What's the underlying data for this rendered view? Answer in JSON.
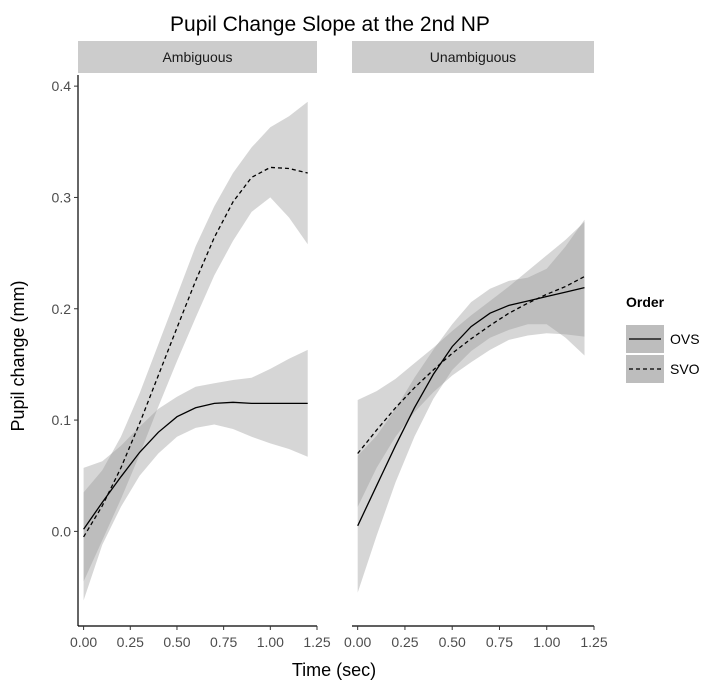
{
  "chart_data": {
    "type": "line",
    "title": "Pupil Change Slope at the 2nd NP",
    "xlabel": "Time (sec)",
    "ylabel": "Pupil change (mm)",
    "xlim": [
      -0.03,
      1.25
    ],
    "ylim": [
      -0.085,
      0.41
    ],
    "x_ticks": [
      "0.00",
      "0.25",
      "0.50",
      "0.75",
      "1.00",
      "1.25"
    ],
    "y_ticks": [
      "0.0",
      "0.1",
      "0.2",
      "0.3",
      "0.4"
    ],
    "grid": false,
    "legend": {
      "title": "Order",
      "position": "right",
      "items": [
        {
          "label": "OVS",
          "linetype": "solid"
        },
        {
          "label": "SVO",
          "linetype": "dashed"
        }
      ]
    },
    "colors": {
      "line": "#000000",
      "ribbon": "#999999",
      "strip": "#cccccc",
      "legend_key": "#bdbdbd"
    },
    "panels": [
      {
        "strip": "Ambiguous",
        "series": [
          {
            "name": "OVS",
            "x": [
              0.0,
              0.1,
              0.2,
              0.3,
              0.4,
              0.5,
              0.6,
              0.7,
              0.8,
              0.9,
              1.0,
              1.1,
              1.2
            ],
            "y": [
              0.002,
              0.026,
              0.049,
              0.071,
              0.089,
              0.103,
              0.111,
              0.115,
              0.116,
              0.115,
              0.115,
              0.115,
              0.115
            ],
            "lower": [
              -0.062,
              -0.012,
              0.022,
              0.05,
              0.07,
              0.085,
              0.093,
              0.096,
              0.092,
              0.085,
              0.079,
              0.074,
              0.067
            ],
            "upper": [
              0.057,
              0.063,
              0.077,
              0.094,
              0.11,
              0.121,
              0.13,
              0.133,
              0.136,
              0.138,
              0.146,
              0.155,
              0.163
            ]
          },
          {
            "name": "SVO",
            "x": [
              0.0,
              0.1,
              0.2,
              0.3,
              0.4,
              0.5,
              0.6,
              0.7,
              0.8,
              0.9,
              1.0,
              1.1,
              1.2
            ],
            "y": [
              -0.005,
              0.023,
              0.057,
              0.097,
              0.14,
              0.183,
              0.225,
              0.264,
              0.296,
              0.318,
              0.327,
              0.326,
              0.322
            ],
            "lower": [
              -0.045,
              -0.008,
              0.029,
              0.069,
              0.112,
              0.153,
              0.192,
              0.23,
              0.261,
              0.287,
              0.3,
              0.282,
              0.258
            ],
            "upper": [
              0.035,
              0.055,
              0.085,
              0.124,
              0.168,
              0.212,
              0.256,
              0.292,
              0.322,
              0.345,
              0.363,
              0.373,
              0.386
            ]
          }
        ]
      },
      {
        "strip": "Unambiguous",
        "series": [
          {
            "name": "OVS",
            "x": [
              0.0,
              0.1,
              0.2,
              0.3,
              0.4,
              0.5,
              0.6,
              0.7,
              0.8,
              0.9,
              1.0,
              1.1,
              1.2
            ],
            "y": [
              0.005,
              0.041,
              0.077,
              0.111,
              0.141,
              0.166,
              0.184,
              0.196,
              0.203,
              0.207,
              0.211,
              0.215,
              0.219
            ],
            "lower": [
              -0.055,
              -0.004,
              0.044,
              0.085,
              0.119,
              0.145,
              0.162,
              0.174,
              0.181,
              0.186,
              0.186,
              0.174,
              0.158
            ],
            "upper": [
              0.068,
              0.086,
              0.11,
              0.138,
              0.163,
              0.186,
              0.206,
              0.218,
              0.225,
              0.228,
              0.236,
              0.256,
              0.28
            ]
          },
          {
            "name": "SVO",
            "x": [
              0.0,
              0.1,
              0.2,
              0.3,
              0.4,
              0.5,
              0.6,
              0.7,
              0.8,
              0.9,
              1.0,
              1.1,
              1.2
            ],
            "y": [
              0.07,
              0.091,
              0.111,
              0.129,
              0.145,
              0.16,
              0.173,
              0.185,
              0.196,
              0.205,
              0.213,
              0.22,
              0.229
            ],
            "lower": [
              0.022,
              0.057,
              0.085,
              0.107,
              0.125,
              0.14,
              0.152,
              0.163,
              0.172,
              0.176,
              0.178,
              0.177,
              0.175
            ],
            "upper": [
              0.118,
              0.126,
              0.137,
              0.151,
              0.165,
              0.18,
              0.194,
              0.207,
              0.22,
              0.234,
              0.248,
              0.262,
              0.278
            ]
          }
        ]
      }
    ]
  }
}
